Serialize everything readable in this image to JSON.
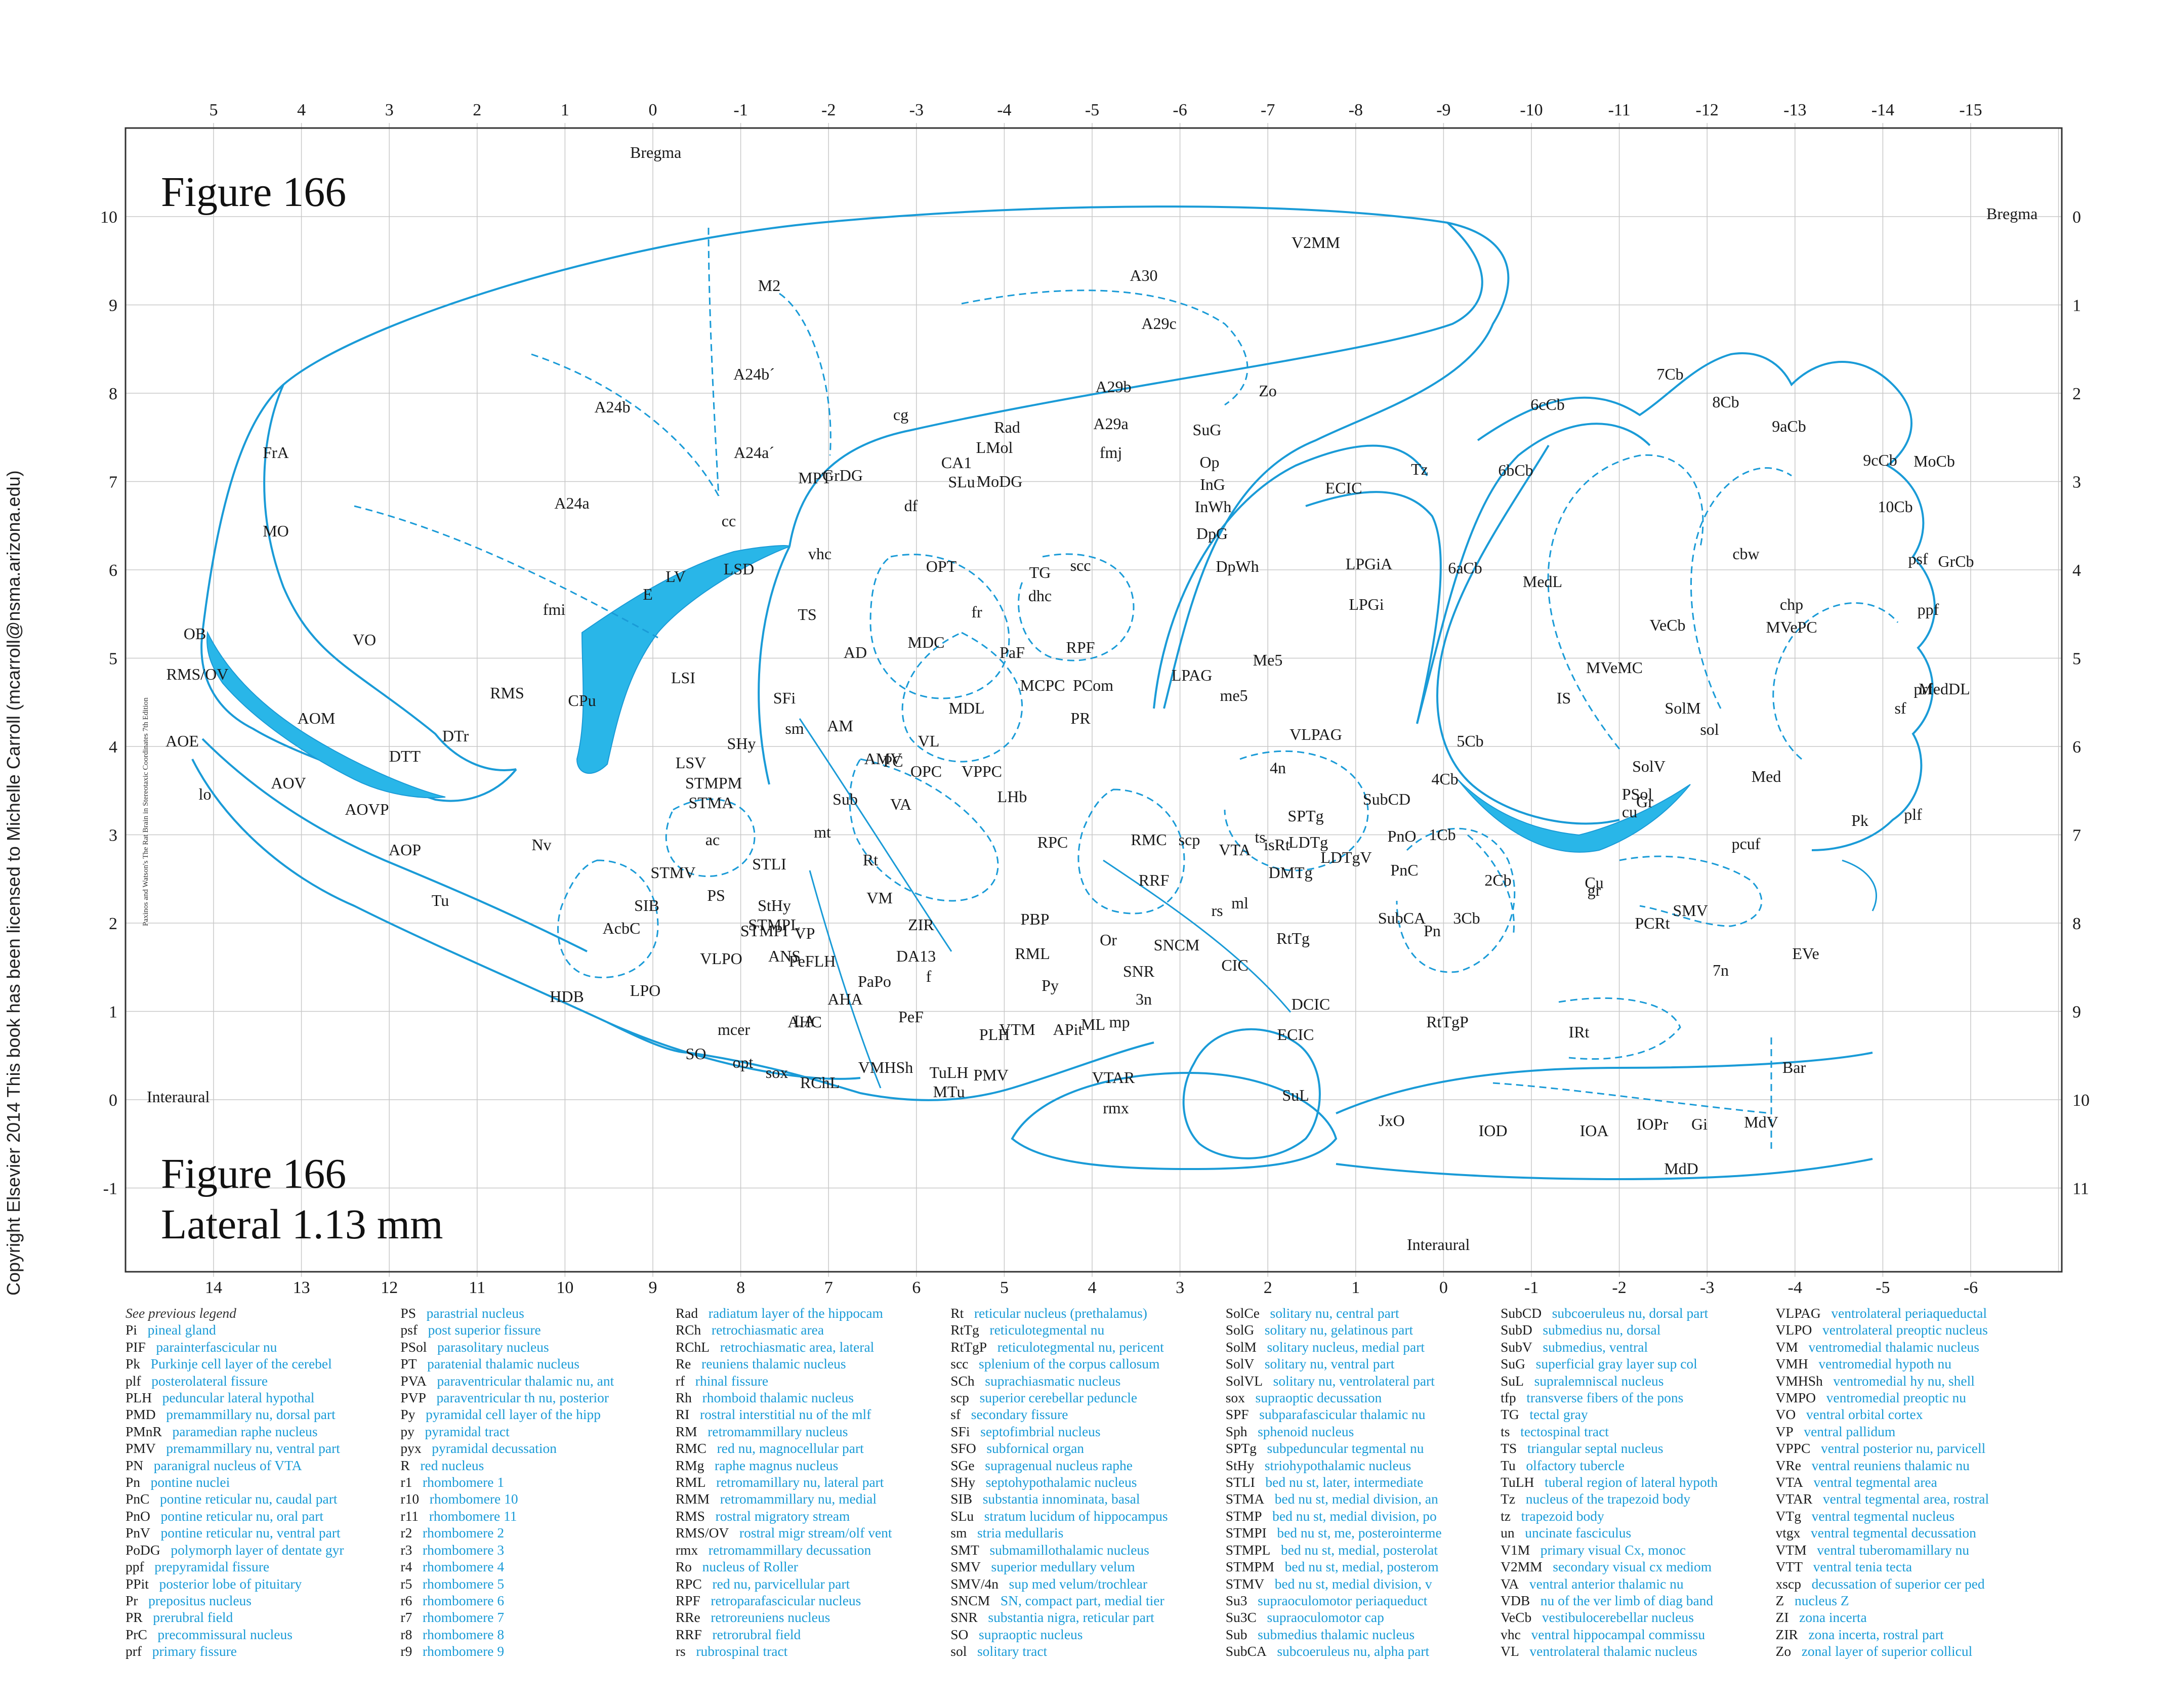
{
  "figure": {
    "title_top": "Figure 166",
    "title_bottom": "Figure 166",
    "lateral": "Lateral 1.13 mm",
    "copyright": "Copyright Elsevier 2014 This book has been licensed to Michelle Carroll (mcarroll@nsma.arizona.edu)",
    "side_credit": "Paxinos and Watson's The Rat Brain in Stereotaxic Coordinates   7th Edition"
  },
  "colors": {
    "outline": "#1a9bd7",
    "fill": "#29b6e8",
    "grid": "#c8c8c8",
    "frame": "#333333"
  },
  "axes": {
    "top_ticks": [
      "5",
      "4",
      "3",
      "2",
      "1",
      "0",
      "-1",
      "-2",
      "-3",
      "-4",
      "-5",
      "-6",
      "-7",
      "-8",
      "-9",
      "-10",
      "-11",
      "-12",
      "-13",
      "-14",
      "-15"
    ],
    "bottom_ticks": [
      "14",
      "13",
      "12",
      "11",
      "10",
      "9",
      "8",
      "7",
      "6",
      "5",
      "4",
      "3",
      "2",
      "1",
      "0",
      "-1",
      "-2",
      "-3",
      "-4",
      "-5",
      "-6"
    ],
    "left_ticks": [
      "10",
      "9",
      "8",
      "7",
      "6",
      "5",
      "4",
      "3",
      "2",
      "1",
      "0",
      "-1"
    ],
    "right_ticks": [
      "0",
      "1",
      "2",
      "3",
      "4",
      "5",
      "6",
      "7",
      "8",
      "9",
      "10",
      "11"
    ],
    "bregma_top": "Bregma",
    "bregma_right": "Bregma",
    "interaural_left": "Interaural",
    "interaural_bottom": "Interaural"
  },
  "regions": [
    "M2",
    "V2MM",
    "A30",
    "A29c",
    "A24b´",
    "A24b",
    "A24a´",
    "A24a",
    "FrA",
    "MO",
    "VO",
    "OB",
    "RMS/OV",
    "AOE",
    "lo",
    "AOM",
    "AOV",
    "AOVP",
    "AOP",
    "DTT",
    "DTr",
    "RMS",
    "CPu",
    "LSI",
    "LV",
    "E",
    "fmi",
    "cc",
    "cg",
    "LSD",
    "vhc",
    "TS",
    "SFi",
    "sm",
    "AD",
    "MDC",
    "MDL",
    "AM",
    "AMV",
    "LSV",
    "SHy",
    "STMPM",
    "STMA",
    "ac",
    "STLI",
    "STMV",
    "PS",
    "StHy",
    "STMPL",
    "STMPI",
    "ANS",
    "VP",
    "SIB",
    "AcbC",
    "Nv",
    "Tu",
    "HDB",
    "LPO",
    "VLPO",
    "mcer",
    "SO",
    "opt",
    "sox",
    "RChL",
    "VMHSh",
    "MTu",
    "TuLH",
    "PMV",
    "PLH",
    "LA",
    "AHC",
    "AHA",
    "PeFLH",
    "PeF",
    "f",
    "PaPo",
    "DA13",
    "ZIR",
    "VM",
    "Rt",
    "mt",
    "Sub",
    "VA",
    "PC",
    "VL",
    "OPC",
    "VPPC",
    "LHb",
    "fr",
    "PaF",
    "MCPC",
    "PCom",
    "RPF",
    "PR",
    "RPC",
    "RMC",
    "RRF",
    "VTA",
    "rs",
    "ml",
    "SNCM",
    "SNR",
    "3n",
    "mp",
    "ML",
    "VTM",
    "APit",
    "VTAR",
    "rmx",
    "PBP",
    "RML",
    "Or",
    "Py",
    "Rad",
    "LMol",
    "CA1",
    "SLu",
    "MoDG",
    "GrDG",
    "df",
    "OPT",
    "MPT",
    "TG",
    "dhc",
    "scc",
    "fmj",
    "A29a",
    "A29b",
    "Zo",
    "SuG",
    "Op",
    "InG",
    "InWh",
    "DpG",
    "DpWh",
    "LPAG",
    "Me5",
    "me5",
    "VLPAG",
    "4n",
    "isRt",
    "ts",
    "scp",
    "SPTg",
    "LDTg",
    "LDTgV",
    "DMTg",
    "SubCA",
    "SubCD",
    "PnO",
    "PnC",
    "Pn",
    "RtTg",
    "RtTgP",
    "SuL",
    "ECIC",
    "DCIC",
    "CIC",
    "ECIC",
    "Tz",
    "LPGiA",
    "LPGi",
    "JxO",
    "IOD",
    "IOA",
    "IOPr",
    "Gi",
    "MdV",
    "MdD",
    "IRt",
    "Bar",
    "EVe",
    "7n",
    "1Cb",
    "2Cb",
    "3Cb",
    "4Cb",
    "5Cb",
    "6aCb",
    "6bCb",
    "6cCb",
    "7Cb",
    "8Cb",
    "9aCb",
    "9cCb",
    "10Cb",
    "psf",
    "ppf",
    "prf",
    "sf",
    "plf",
    "pcuf",
    "Pk",
    "MoCb",
    "GrCb",
    "cbw",
    "MedDL",
    "Med",
    "MedL",
    "VeCb",
    "chp",
    "MVePC",
    "MVeMC",
    "IS",
    "SolM",
    "sol",
    "SolV",
    "PSol",
    "Gr",
    "cu",
    "Cu",
    "gr",
    "PCRt",
    "SMV"
  ],
  "legend_header": "See previous legend",
  "legend": [
    [
      [
        "Pi",
        "pineal gland"
      ],
      [
        "PIF",
        "parainterfascicular nu"
      ],
      [
        "Pk",
        "Purkinje cell layer of the cerebel"
      ],
      [
        "plf",
        "posterolateral fissure"
      ],
      [
        "PLH",
        "peduncular lateral hypothal"
      ],
      [
        "PMD",
        "premammillary nu, dorsal part"
      ],
      [
        "PMnR",
        "paramedian raphe nucleus"
      ],
      [
        "PMV",
        "premammillary nu, ventral part"
      ],
      [
        "PN",
        "paranigral nucleus of VTA"
      ],
      [
        "Pn",
        "pontine nuclei"
      ],
      [
        "PnC",
        "pontine reticular nu, caudal part"
      ],
      [
        "PnO",
        "pontine reticular nu, oral part"
      ],
      [
        "PnV",
        "pontine reticular nu, ventral part"
      ],
      [
        "PoDG",
        "polymorph layer of dentate gyr"
      ],
      [
        "ppf",
        "prepyramidal fissure"
      ],
      [
        "PPit",
        "posterior lobe of pituitary"
      ],
      [
        "Pr",
        "prepositus nucleus"
      ],
      [
        "PR",
        "prerubral field"
      ],
      [
        "PrC",
        "precommissural nucleus"
      ],
      [
        "prf",
        "primary fissure"
      ]
    ],
    [
      [
        "PS",
        "parastrial nucleus"
      ],
      [
        "psf",
        "post superior fissure"
      ],
      [
        "PSol",
        "parasolitary nucleus"
      ],
      [
        "PT",
        "paratenial thalamic nucleus"
      ],
      [
        "PVA",
        "paraventricular thalamic nu, ant"
      ],
      [
        "PVP",
        "paraventricular th nu, posterior"
      ],
      [
        "Py",
        "pyramidal cell layer of the hipp"
      ],
      [
        "py",
        "pyramidal tract"
      ],
      [
        "pyx",
        "pyramidal decussation"
      ],
      [
        "R",
        "red nucleus"
      ],
      [
        "r1",
        "rhombomere 1"
      ],
      [
        "r10",
        "rhombomere 10"
      ],
      [
        "r11",
        "rhombomere 11"
      ],
      [
        "r2",
        "rhombomere 2"
      ],
      [
        "r3",
        "rhombomere 3"
      ],
      [
        "r4",
        "rhombomere 4"
      ],
      [
        "r5",
        "rhombomere 5"
      ],
      [
        "r6",
        "rhombomere 6"
      ],
      [
        "r7",
        "rhombomere 7"
      ],
      [
        "r8",
        "rhombomere 8"
      ],
      [
        "r9",
        "rhombomere 9"
      ]
    ],
    [
      [
        "Rad",
        "radiatum layer of the hippocam"
      ],
      [
        "RCh",
        "retrochiasmatic area"
      ],
      [
        "RChL",
        "retrochiasmatic area, lateral"
      ],
      [
        "Re",
        "reuniens thalamic nucleus"
      ],
      [
        "rf",
        "rhinal fissure"
      ],
      [
        "Rh",
        "rhomboid thalamic nucleus"
      ],
      [
        "RI",
        "rostral interstitial nu of the mlf"
      ],
      [
        "RM",
        "retromammillary nucleus"
      ],
      [
        "RMC",
        "red nu, magnocellular part"
      ],
      [
        "RMg",
        "raphe magnus nucleus"
      ],
      [
        "RML",
        "retromamillary nu, lateral part"
      ],
      [
        "RMM",
        "retromammillary nu, medial"
      ],
      [
        "RMS",
        "rostral migratory stream"
      ],
      [
        "RMS/OV",
        "rostral migr stream/olf vent"
      ],
      [
        "rmx",
        "retromammillary decussation"
      ],
      [
        "Ro",
        "nucleus of Roller"
      ],
      [
        "RPC",
        "red nu, parvicellular part"
      ],
      [
        "RPF",
        "retroparafascicular nucleus"
      ],
      [
        "RRe",
        "retroreuniens nucleus"
      ],
      [
        "RRF",
        "retrorubral field"
      ],
      [
        "rs",
        "rubrospinal tract"
      ]
    ],
    [
      [
        "Rt",
        "reticular nucleus (prethalamus)"
      ],
      [
        "RtTg",
        "reticulotegmental nu"
      ],
      [
        "RtTgP",
        "reticulotegmental nu, pericent"
      ],
      [
        "scc",
        "splenium of the corpus callosum"
      ],
      [
        "SCh",
        "suprachiasmatic nucleus"
      ],
      [
        "scp",
        "superior cerebellar peduncle"
      ],
      [
        "sf",
        "secondary fissure"
      ],
      [
        "SFi",
        "septofimbrial nucleus"
      ],
      [
        "SFO",
        "subfornical organ"
      ],
      [
        "SGe",
        "supragenual nucleus raphe"
      ],
      [
        "SHy",
        "septohypothalamic nucleus"
      ],
      [
        "SIB",
        "substantia innominata, basal"
      ],
      [
        "SLu",
        "stratum lucidum of hippocampus"
      ],
      [
        "sm",
        "stria medullaris"
      ],
      [
        "SMT",
        "submamillothalamic nucleus"
      ],
      [
        "SMV",
        "superior medullary velum"
      ],
      [
        "SMV/4n",
        "sup med velum/trochlear"
      ],
      [
        "SNCM",
        "SN, compact part, medial tier"
      ],
      [
        "SNR",
        "substantia nigra, reticular part"
      ],
      [
        "SO",
        "supraoptic nucleus"
      ],
      [
        "sol",
        "solitary tract"
      ]
    ],
    [
      [
        "SolCe",
        "solitary nu, central part"
      ],
      [
        "SolG",
        "solitary nu, gelatinous part"
      ],
      [
        "SolM",
        "solitary nucleus, medial part"
      ],
      [
        "SolV",
        "solitary nu, ventral part"
      ],
      [
        "SolVL",
        "solitary nu, ventrolateral part"
      ],
      [
        "sox",
        "supraoptic decussation"
      ],
      [
        "SPF",
        "subparafascicular thalamic nu"
      ],
      [
        "Sph",
        "sphenoid nucleus"
      ],
      [
        "SPTg",
        "subpeduncular tegmental nu"
      ],
      [
        "StHy",
        "striohypothalamic nucleus"
      ],
      [
        "STLI",
        "bed nu st, later, intermediate"
      ],
      [
        "STMA",
        "bed nu st, medial division, an"
      ],
      [
        "STMP",
        "bed nu st, medial division, po"
      ],
      [
        "STMPI",
        "bed nu st, me, posterointerme"
      ],
      [
        "STMPL",
        "bed nu st, medial, posterolat"
      ],
      [
        "STMPM",
        "bed nu st, medial, posterom"
      ],
      [
        "STMV",
        "bed nu st, medial division, v"
      ],
      [
        "Su3",
        "supraoculomotor periaqueduct"
      ],
      [
        "Su3C",
        "supraoculomotor cap"
      ],
      [
        "Sub",
        "submedius thalamic nucleus"
      ],
      [
        "SubCA",
        "subcoeruleus nu, alpha part"
      ]
    ],
    [
      [
        "SubCD",
        "subcoeruleus nu, dorsal part"
      ],
      [
        "SubD",
        "submedius nu, dorsal"
      ],
      [
        "SubV",
        "submedius, ventral"
      ],
      [
        "SuG",
        "superficial gray layer sup col"
      ],
      [
        "SuL",
        "supralemniscal nucleus"
      ],
      [
        "tfp",
        "transverse fibers of the pons"
      ],
      [
        "TG",
        "tectal gray"
      ],
      [
        "ts",
        "tectospinal tract"
      ],
      [
        "TS",
        "triangular septal nucleus"
      ],
      [
        "Tu",
        "olfactory tubercle"
      ],
      [
        "TuLH",
        "tuberal region of lateral hypoth"
      ],
      [
        "Tz",
        "nucleus of the trapezoid body"
      ],
      [
        "tz",
        "trapezoid body"
      ],
      [
        "un",
        "uncinate fasciculus"
      ],
      [
        "V1M",
        "primary visual Cx, monoc"
      ],
      [
        "V2MM",
        "secondary visual cx mediom"
      ],
      [
        "VA",
        "ventral anterior thalamic nu"
      ],
      [
        "VDB",
        "nu of the ver limb of diag band"
      ],
      [
        "VeCb",
        "vestibulocerebellar nucleus"
      ],
      [
        "vhc",
        "ventral hippocampal commissu"
      ],
      [
        "VL",
        "ventrolateral thalamic nucleus"
      ]
    ],
    [
      [
        "VLPAG",
        "ventrolateral periaqueductal"
      ],
      [
        "VLPO",
        "ventrolateral preoptic nucleus"
      ],
      [
        "VM",
        "ventromedial thalamic nucleus"
      ],
      [
        "VMH",
        "ventromedial hypoth nu"
      ],
      [
        "VMHSh",
        "ventromedial hy nu, shell"
      ],
      [
        "VMPO",
        "ventromedial preoptic nu"
      ],
      [
        "VO",
        "ventral orbital cortex"
      ],
      [
        "VP",
        "ventral pallidum"
      ],
      [
        "VPPC",
        "ventral posterior nu, parvicell"
      ],
      [
        "VRe",
        "ventral reuniens thalamic nu"
      ],
      [
        "VTA",
        "ventral tegmental area"
      ],
      [
        "VTAR",
        "ventral tegmental area, rostral"
      ],
      [
        "VTg",
        "ventral tegmental nucleus"
      ],
      [
        "vtgx",
        "ventral tegmental decussation"
      ],
      [
        "VTM",
        "ventral tuberomamillary nu"
      ],
      [
        "VTT",
        "ventral tenia tecta"
      ],
      [
        "xscp",
        "decussation of superior cer ped"
      ],
      [
        "Z",
        "nucleus Z"
      ],
      [
        "ZI",
        "zona incerta"
      ],
      [
        "ZIR",
        "zona incerta, rostral part"
      ],
      [
        "Zo",
        "zonal layer of superior collicul"
      ]
    ]
  ]
}
